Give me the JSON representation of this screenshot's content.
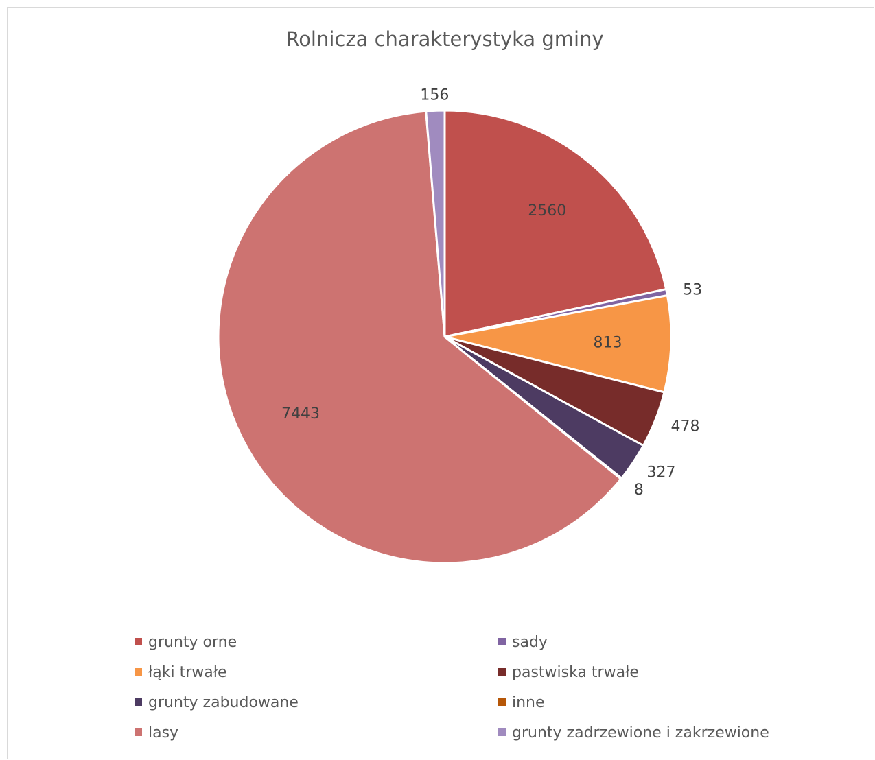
{
  "chart_data": {
    "type": "pie",
    "title": "Rolnicza charakterystyka gminy",
    "start_angle_deg": 0,
    "direction": "clockwise",
    "legend_position": "bottom",
    "legend_columns": 2,
    "slices": [
      {
        "name": "grunty orne",
        "value": 2560,
        "label": "2560",
        "color": "#C0504D"
      },
      {
        "name": "sady",
        "value": 53,
        "label": "53",
        "color": "#8064A2"
      },
      {
        "name": "łąki trwałe",
        "value": 813,
        "label": "813",
        "color": "#F79646"
      },
      {
        "name": "pastwiska trwałe",
        "value": 478,
        "label": "478",
        "color": "#772C2A"
      },
      {
        "name": "grunty zabudowane",
        "value": 327,
        "label": "327",
        "color": "#4D3B62"
      },
      {
        "name": "inne",
        "value": 8,
        "label": "8",
        "color": "#B65708"
      },
      {
        "name": "lasy",
        "value": 7443,
        "label": "7443",
        "color": "#CD7371"
      },
      {
        "name": "grunty zadrzewione i zakrzewione",
        "value": 156,
        "label": "156",
        "color": "#A08BBF"
      }
    ]
  }
}
